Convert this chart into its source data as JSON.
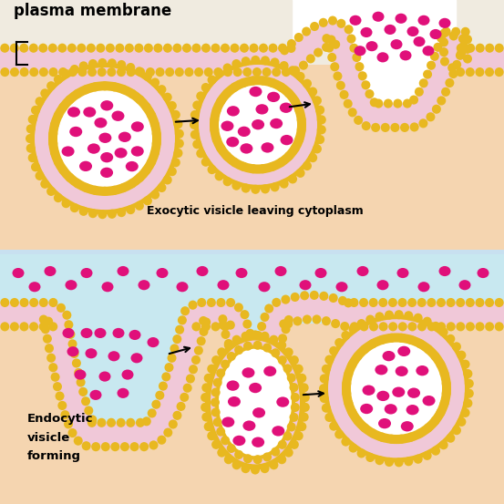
{
  "bg_cytoplasm": "#f5d5b0",
  "bg_extracellular_top": "#f0ebe0",
  "bg_extracellular_bottom": "#c8e8f0",
  "mem_gold": "#e8b820",
  "mem_pink": "#f0c8d8",
  "vesicle_white": "#ffffff",
  "dot_color": "#e0107a",
  "text_color": "#000000",
  "title_text": "plasma membrane",
  "label_exo": "Exocytic visicle leaving cytoplasm",
  "label_endo_1": "Endocytic",
  "label_endo_2": "visicle",
  "label_endo_3": "forming",
  "divider_color": "#c8e0f0",
  "fig_width": 5.53,
  "fig_height": 5.53,
  "dpi": 100
}
